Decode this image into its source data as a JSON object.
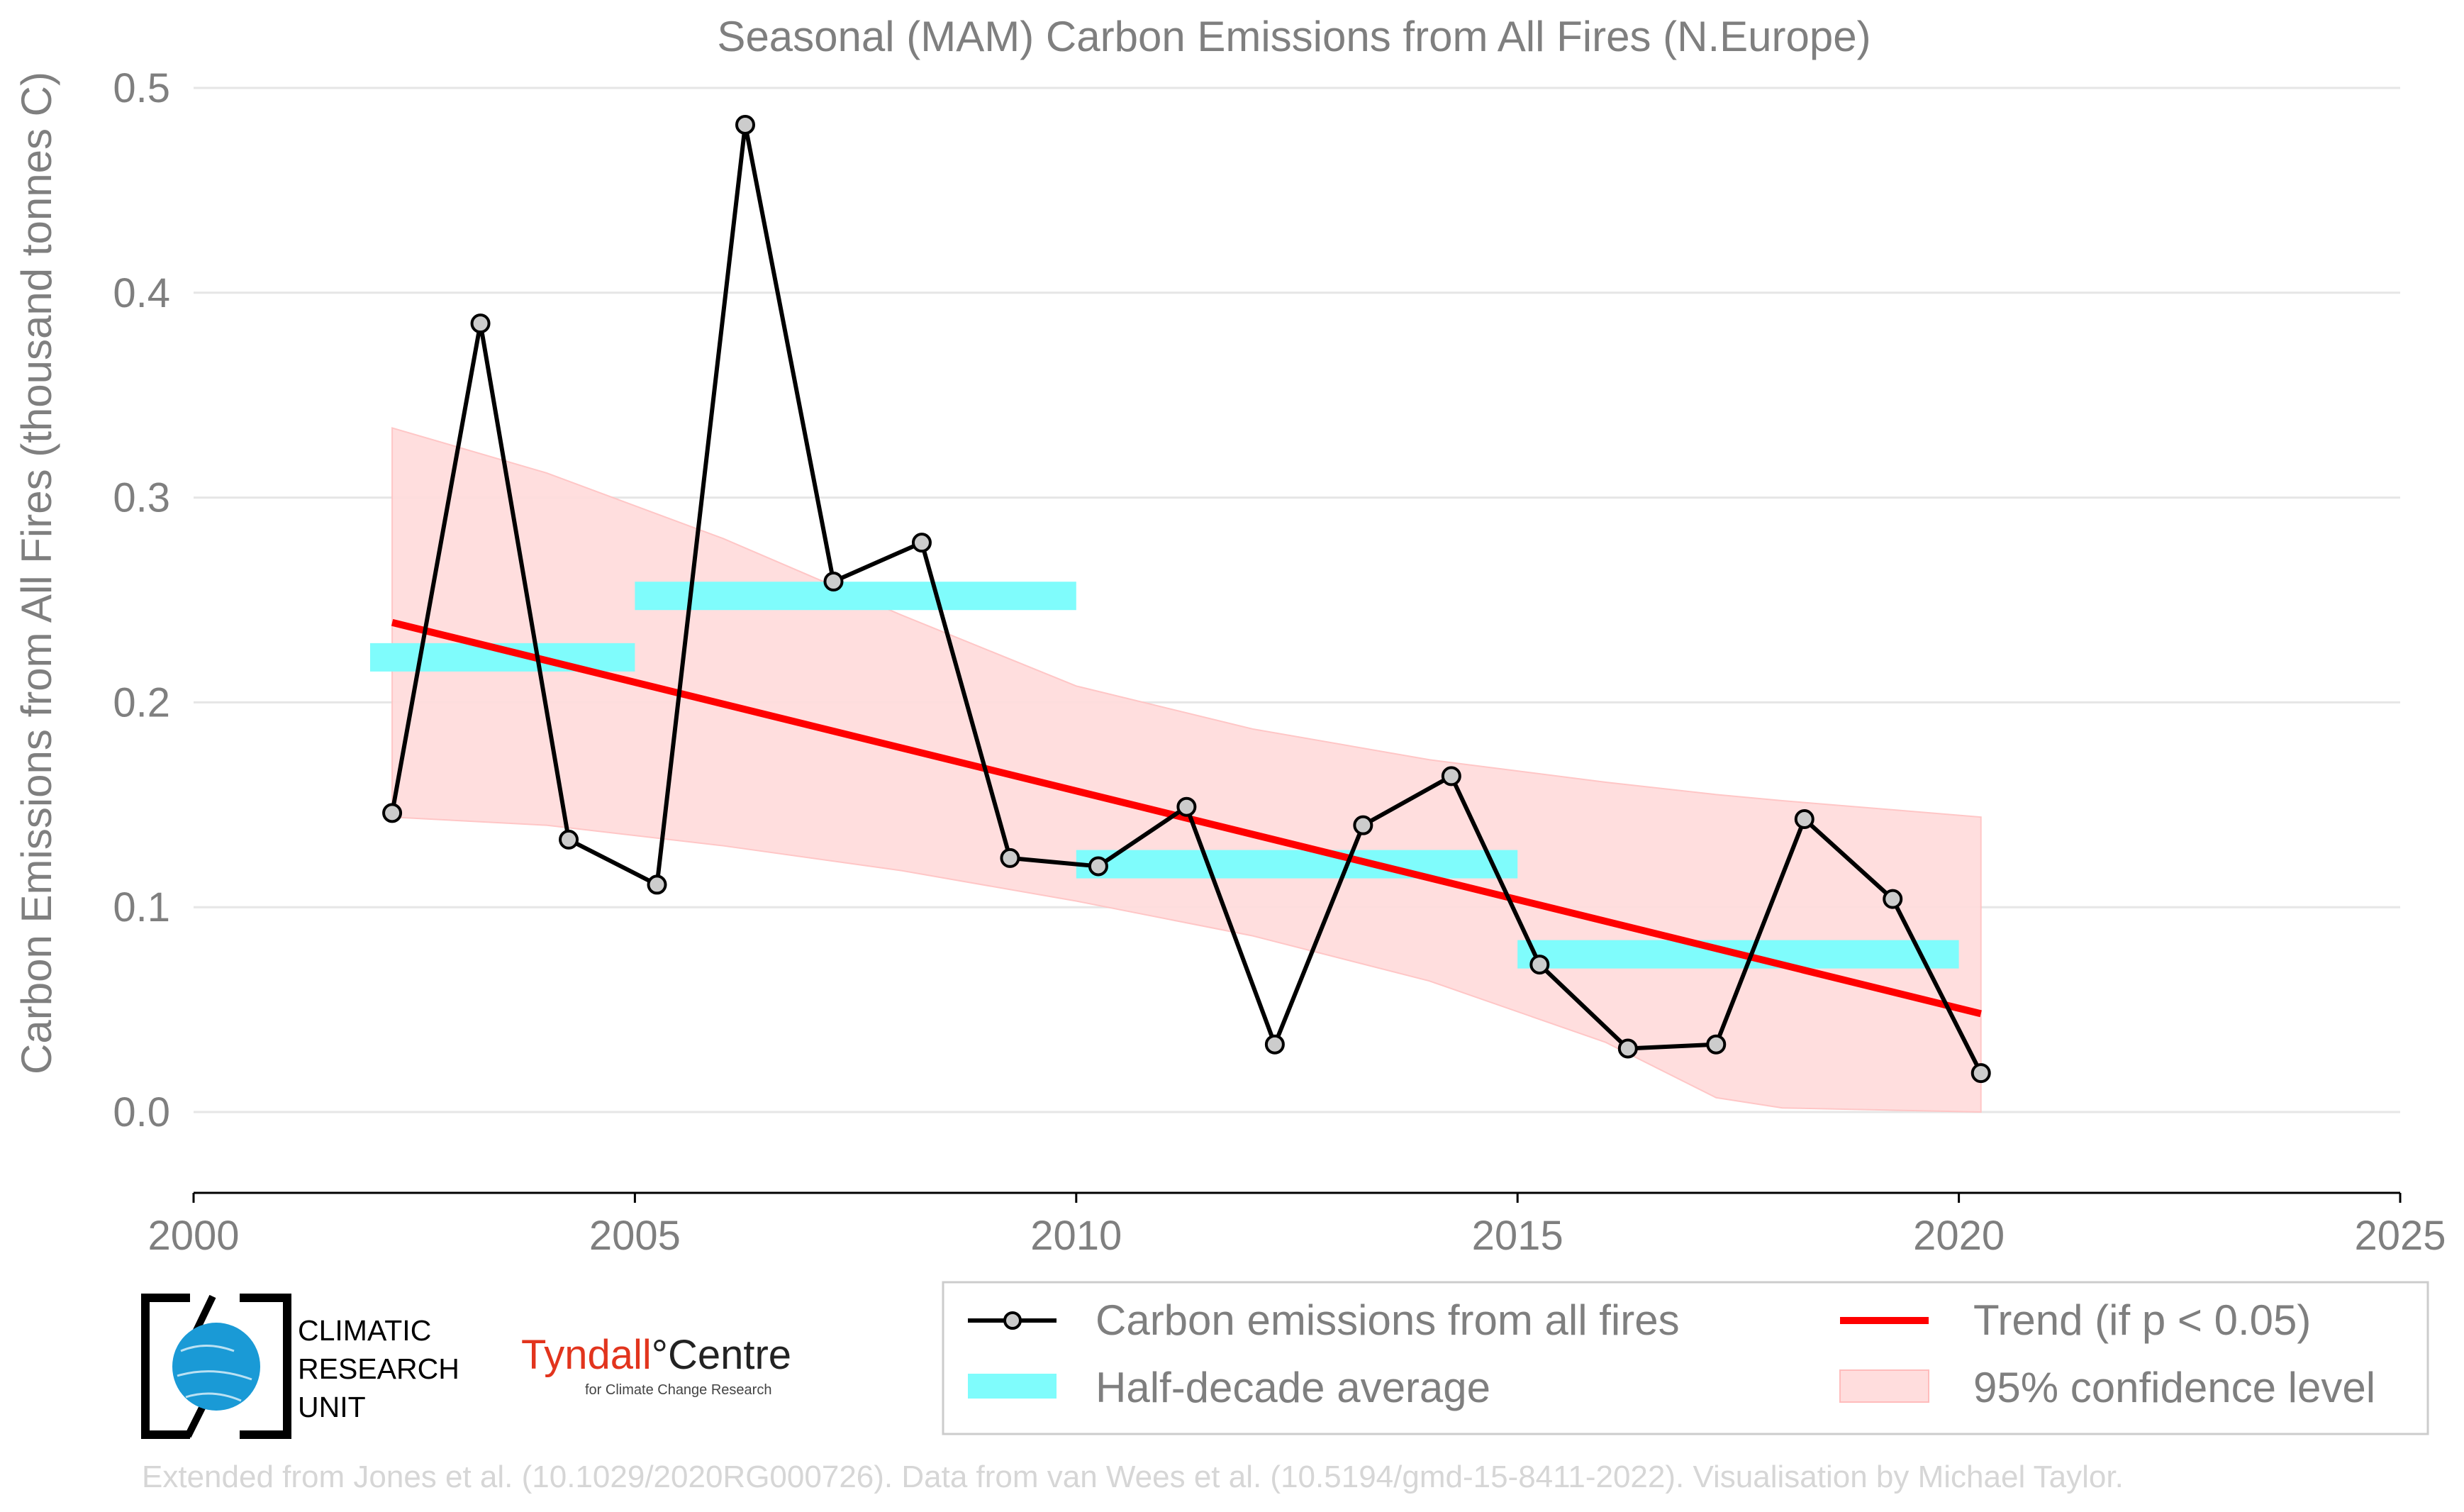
{
  "chart_data": {
    "type": "line",
    "title": "Seasonal (MAM) Carbon Emissions from All Fires (N.Europe)",
    "xlabel": "",
    "ylabel": "Carbon Emissions from All Fires (thousand tonnes C)",
    "xlim": [
      2000,
      2025
    ],
    "ylim": [
      0.0,
      0.5
    ],
    "xticks": [
      "2000",
      "2005",
      "2010",
      "2015",
      "2020",
      "2025"
    ],
    "yticks": [
      "0.0",
      "0.1",
      "0.2",
      "0.3",
      "0.4",
      "0.5"
    ],
    "grid": "horizontal",
    "legend_position": "bottom-right",
    "series": [
      {
        "name": "Carbon emissions from all fires",
        "color": "#000000",
        "x": [
          2002.25,
          2003.25,
          2004.25,
          2005.25,
          2006.25,
          2007.25,
          2008.25,
          2009.25,
          2010.25,
          2011.25,
          2012.25,
          2013.25,
          2014.25,
          2015.25,
          2016.25,
          2017.25,
          2018.25,
          2019.25,
          2020.25
        ],
        "values": [
          0.146,
          0.385,
          0.133,
          0.111,
          0.482,
          0.259,
          0.278,
          0.124,
          0.12,
          0.149,
          0.033,
          0.14,
          0.164,
          0.072,
          0.031,
          0.033,
          0.143,
          0.104,
          0.019
        ]
      },
      {
        "name": "Half-decade average",
        "color": "#7ffcfc",
        "segments": [
          {
            "x0": 2002.0,
            "x1": 2005.0,
            "value": 0.222
          },
          {
            "x0": 2005.0,
            "x1": 2010.0,
            "value": 0.252
          },
          {
            "x0": 2010.0,
            "x1": 2015.0,
            "value": 0.121
          },
          {
            "x0": 2015.0,
            "x1": 2020.0,
            "value": 0.077
          }
        ]
      },
      {
        "name": "Trend (if p < 0.05)",
        "color": "#ff0000",
        "x": [
          2002.25,
          2020.25
        ],
        "values": [
          0.239,
          0.048
        ]
      },
      {
        "name": "95% confidence level",
        "color": "#ffdddd",
        "x": [
          2002.25,
          2004.0,
          2006.0,
          2008.0,
          2010.0,
          2012.0,
          2014.0,
          2016.0,
          2017.25,
          2018.0,
          2020.25
        ],
        "upper": [
          0.334,
          0.312,
          0.28,
          0.243,
          0.208,
          0.187,
          0.172,
          0.161,
          0.155,
          0.152,
          0.144
        ],
        "lower": [
          0.144,
          0.14,
          0.13,
          0.118,
          0.103,
          0.086,
          0.064,
          0.034,
          0.007,
          0.002,
          0.0
        ]
      }
    ]
  },
  "logos": {
    "cru_lines": [
      "CLIMATIC",
      "RESEARCH",
      "UNIT"
    ],
    "tyndall_main": "Tyndall",
    "tyndall_centre": "°Centre",
    "tyndall_sub": "for Climate Change Research"
  },
  "credit": "Extended from Jones et al. (10.1029/2020RG000726). Data from van Wees et al. (10.5194/gmd-15-8411-2022). Visualisation by Michael Taylor.",
  "colors": {
    "grid": "#e6e6e6",
    "axis": "#000000",
    "marker_fill": "#cccccc",
    "cru_blue": "#1a9ad6"
  }
}
